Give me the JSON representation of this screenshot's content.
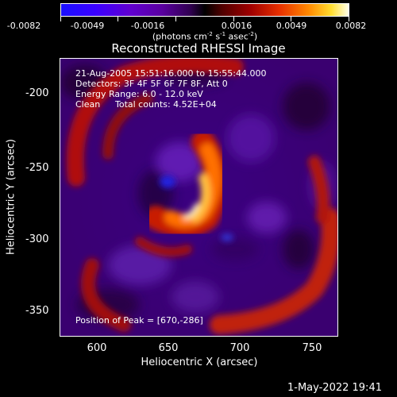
{
  "colorbar": {
    "ticks": [
      "-0.0082",
      "-0.0049",
      "-0.0016",
      "0.0016",
      "0.0049",
      "0.0082"
    ],
    "unit_main": "(photons cm",
    "unit_exp1": "-2",
    "unit_s": " s",
    "unit_exp2": "-1",
    "unit_asec": " asec",
    "unit_exp3": "-2",
    "unit_end": ")"
  },
  "title": "Reconstructed RHESSI Image",
  "annotations": {
    "time_range": "21-Aug-2005 15:51:16.000 to 15:55:44.000",
    "detectors": "Detectors: 3F 4F 5F 6F 7F 8F, Att 0",
    "energy": "Energy Range: 6.0 - 12.0 keV",
    "clean": "Clean",
    "total_counts": "Total counts: 4.52E+04",
    "peak": "Position of Peak = [670,-286]"
  },
  "y_axis": {
    "label": "Heliocentric Y (arcsec)",
    "ticks": [
      "-200",
      "-250",
      "-300",
      "-350"
    ]
  },
  "x_axis": {
    "label": "Heliocentric X (arcsec)",
    "ticks": [
      "600",
      "650",
      "700",
      "750"
    ]
  },
  "footer_date": "1-May-2022 19:41",
  "palette": {
    "neg": "#3a0080",
    "zero": "#000000",
    "pos": "#ff8800"
  }
}
